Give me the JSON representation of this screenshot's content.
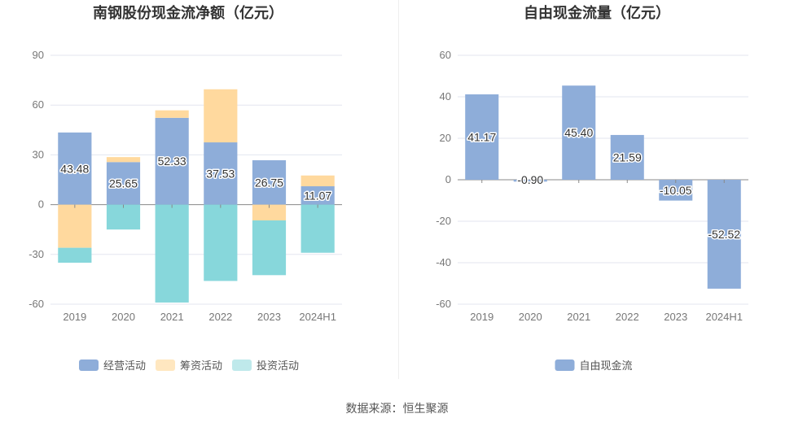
{
  "source_text": "数据来源：恒生聚源",
  "chart_data": [
    {
      "type": "bar",
      "stacked": true,
      "title": "南钢股份现金流净额（亿元）",
      "categories": [
        "2019",
        "2020",
        "2021",
        "2022",
        "2023",
        "2024H1"
      ],
      "ylim": [
        -60,
        90
      ],
      "yticks": [
        -60,
        -30,
        0,
        30,
        60,
        90
      ],
      "grid": true,
      "legend": "bottom",
      "series": [
        {
          "name": "经营活动",
          "color": "#8eadd9",
          "values": [
            43.48,
            25.65,
            52.33,
            37.53,
            26.75,
            11.07
          ],
          "labels": [
            "43.48",
            "25.65",
            "52.33",
            "37.53",
            "26.75",
            "11.07"
          ]
        },
        {
          "name": "筹资活动",
          "color": "#ffd99e",
          "values": [
            -26,
            3,
            4.5,
            32,
            -9.5,
            6.5
          ]
        },
        {
          "name": "投资活动",
          "color": "#87d7db",
          "values": [
            -9,
            -15,
            -59,
            -46,
            -33,
            -29
          ]
        }
      ]
    },
    {
      "type": "bar",
      "title": "自由现金流量（亿元）",
      "categories": [
        "2019",
        "2020",
        "2021",
        "2022",
        "2023",
        "2024H1"
      ],
      "ylim": [
        -60,
        60
      ],
      "yticks": [
        -60,
        -40,
        -20,
        0,
        20,
        40,
        60
      ],
      "grid": true,
      "legend": "bottom",
      "series": [
        {
          "name": "自由现金流",
          "color": "#8eadd9",
          "values": [
            41.17,
            -0.9,
            45.4,
            21.59,
            -10.05,
            -52.52
          ],
          "labels": [
            "41.17",
            "-0.90",
            "45.40",
            "21.59",
            "-10.05",
            "-52.52"
          ]
        }
      ]
    }
  ]
}
